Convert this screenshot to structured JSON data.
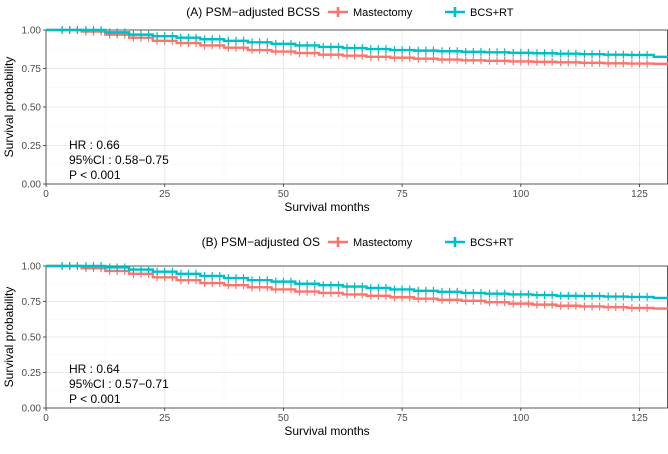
{
  "chart_data": [
    {
      "type": "line",
      "subtype": "kaplan-meier",
      "title": "(A) PSM−adjusted BCSS",
      "xlabel": "Survival months",
      "ylabel": "Survival probability",
      "xlim": [
        0,
        131
      ],
      "ylim": [
        0,
        1
      ],
      "x_ticks": [
        0,
        25,
        50,
        75,
        100,
        125
      ],
      "y_ticks": [
        0,
        0.25,
        0.5,
        0.75,
        1.0
      ],
      "x_tick_labels": [
        "0",
        "25",
        "50",
        "75",
        "100",
        "125"
      ],
      "y_tick_labels": [
        "0.00",
        "0.25",
        "0.50",
        "0.75",
        "1.00"
      ],
      "legend_position": "top",
      "grid": true,
      "series": [
        {
          "name": "Mastectomy",
          "color": "#f8766d",
          "x": [
            0,
            5,
            10,
            15,
            20,
            25,
            30,
            35,
            40,
            45,
            50,
            55,
            60,
            65,
            70,
            75,
            80,
            85,
            90,
            95,
            100,
            105,
            110,
            115,
            120,
            125,
            131
          ],
          "y": [
            1.0,
            1.0,
            0.99,
            0.97,
            0.95,
            0.93,
            0.915,
            0.9,
            0.885,
            0.87,
            0.86,
            0.85,
            0.84,
            0.833,
            0.826,
            0.82,
            0.814,
            0.808,
            0.803,
            0.8,
            0.796,
            0.793,
            0.79,
            0.787,
            0.784,
            0.782,
            0.78
          ]
        },
        {
          "name": "BCS+RT",
          "color": "#00bfc4",
          "x": [
            0,
            5,
            10,
            15,
            20,
            25,
            30,
            35,
            40,
            45,
            50,
            55,
            60,
            65,
            70,
            75,
            80,
            85,
            90,
            95,
            100,
            105,
            110,
            115,
            120,
            125,
            131
          ],
          "y": [
            1.0,
            1.0,
            1.0,
            0.985,
            0.97,
            0.96,
            0.95,
            0.94,
            0.93,
            0.92,
            0.91,
            0.9,
            0.89,
            0.883,
            0.876,
            0.87,
            0.866,
            0.862,
            0.858,
            0.855,
            0.852,
            0.849,
            0.846,
            0.843,
            0.84,
            0.838,
            0.826
          ]
        }
      ],
      "annotations": [
        "HR : 0.66",
        "95%CI : 0.58−0.75",
        "P < 0.001"
      ]
    },
    {
      "type": "line",
      "subtype": "kaplan-meier",
      "title": "(B) PSM−adjusted OS",
      "xlabel": "Survival months",
      "ylabel": "Survival probability",
      "xlim": [
        0,
        131
      ],
      "ylim": [
        0,
        1
      ],
      "x_ticks": [
        0,
        25,
        50,
        75,
        100,
        125
      ],
      "y_ticks": [
        0,
        0.25,
        0.5,
        0.75,
        1.0
      ],
      "x_tick_labels": [
        "0",
        "25",
        "50",
        "75",
        "100",
        "125"
      ],
      "y_tick_labels": [
        "0.00",
        "0.25",
        "0.50",
        "0.75",
        "1.00"
      ],
      "legend_position": "top",
      "grid": true,
      "series": [
        {
          "name": "Mastectomy",
          "color": "#f8766d",
          "x": [
            0,
            5,
            10,
            15,
            20,
            25,
            30,
            35,
            40,
            45,
            50,
            55,
            60,
            65,
            70,
            75,
            80,
            85,
            90,
            95,
            100,
            105,
            110,
            115,
            120,
            125,
            131
          ],
          "y": [
            1.0,
            1.0,
            0.985,
            0.965,
            0.945,
            0.92,
            0.9,
            0.88,
            0.865,
            0.85,
            0.835,
            0.82,
            0.81,
            0.8,
            0.79,
            0.78,
            0.77,
            0.762,
            0.755,
            0.745,
            0.735,
            0.728,
            0.72,
            0.715,
            0.71,
            0.705,
            0.7
          ]
        },
        {
          "name": "BCS+RT",
          "color": "#00bfc4",
          "x": [
            0,
            5,
            10,
            15,
            20,
            25,
            30,
            35,
            40,
            45,
            50,
            55,
            60,
            65,
            70,
            75,
            80,
            85,
            90,
            95,
            100,
            105,
            110,
            115,
            120,
            125,
            131
          ],
          "y": [
            1.0,
            1.0,
            1.0,
            0.99,
            0.975,
            0.96,
            0.945,
            0.93,
            0.915,
            0.9,
            0.89,
            0.875,
            0.865,
            0.855,
            0.845,
            0.835,
            0.825,
            0.818,
            0.81,
            0.805,
            0.8,
            0.795,
            0.79,
            0.788,
            0.785,
            0.782,
            0.775
          ]
        }
      ],
      "annotations": [
        "HR : 0.64",
        "95%CI : 0.57−0.71",
        "P < 0.001"
      ]
    }
  ]
}
